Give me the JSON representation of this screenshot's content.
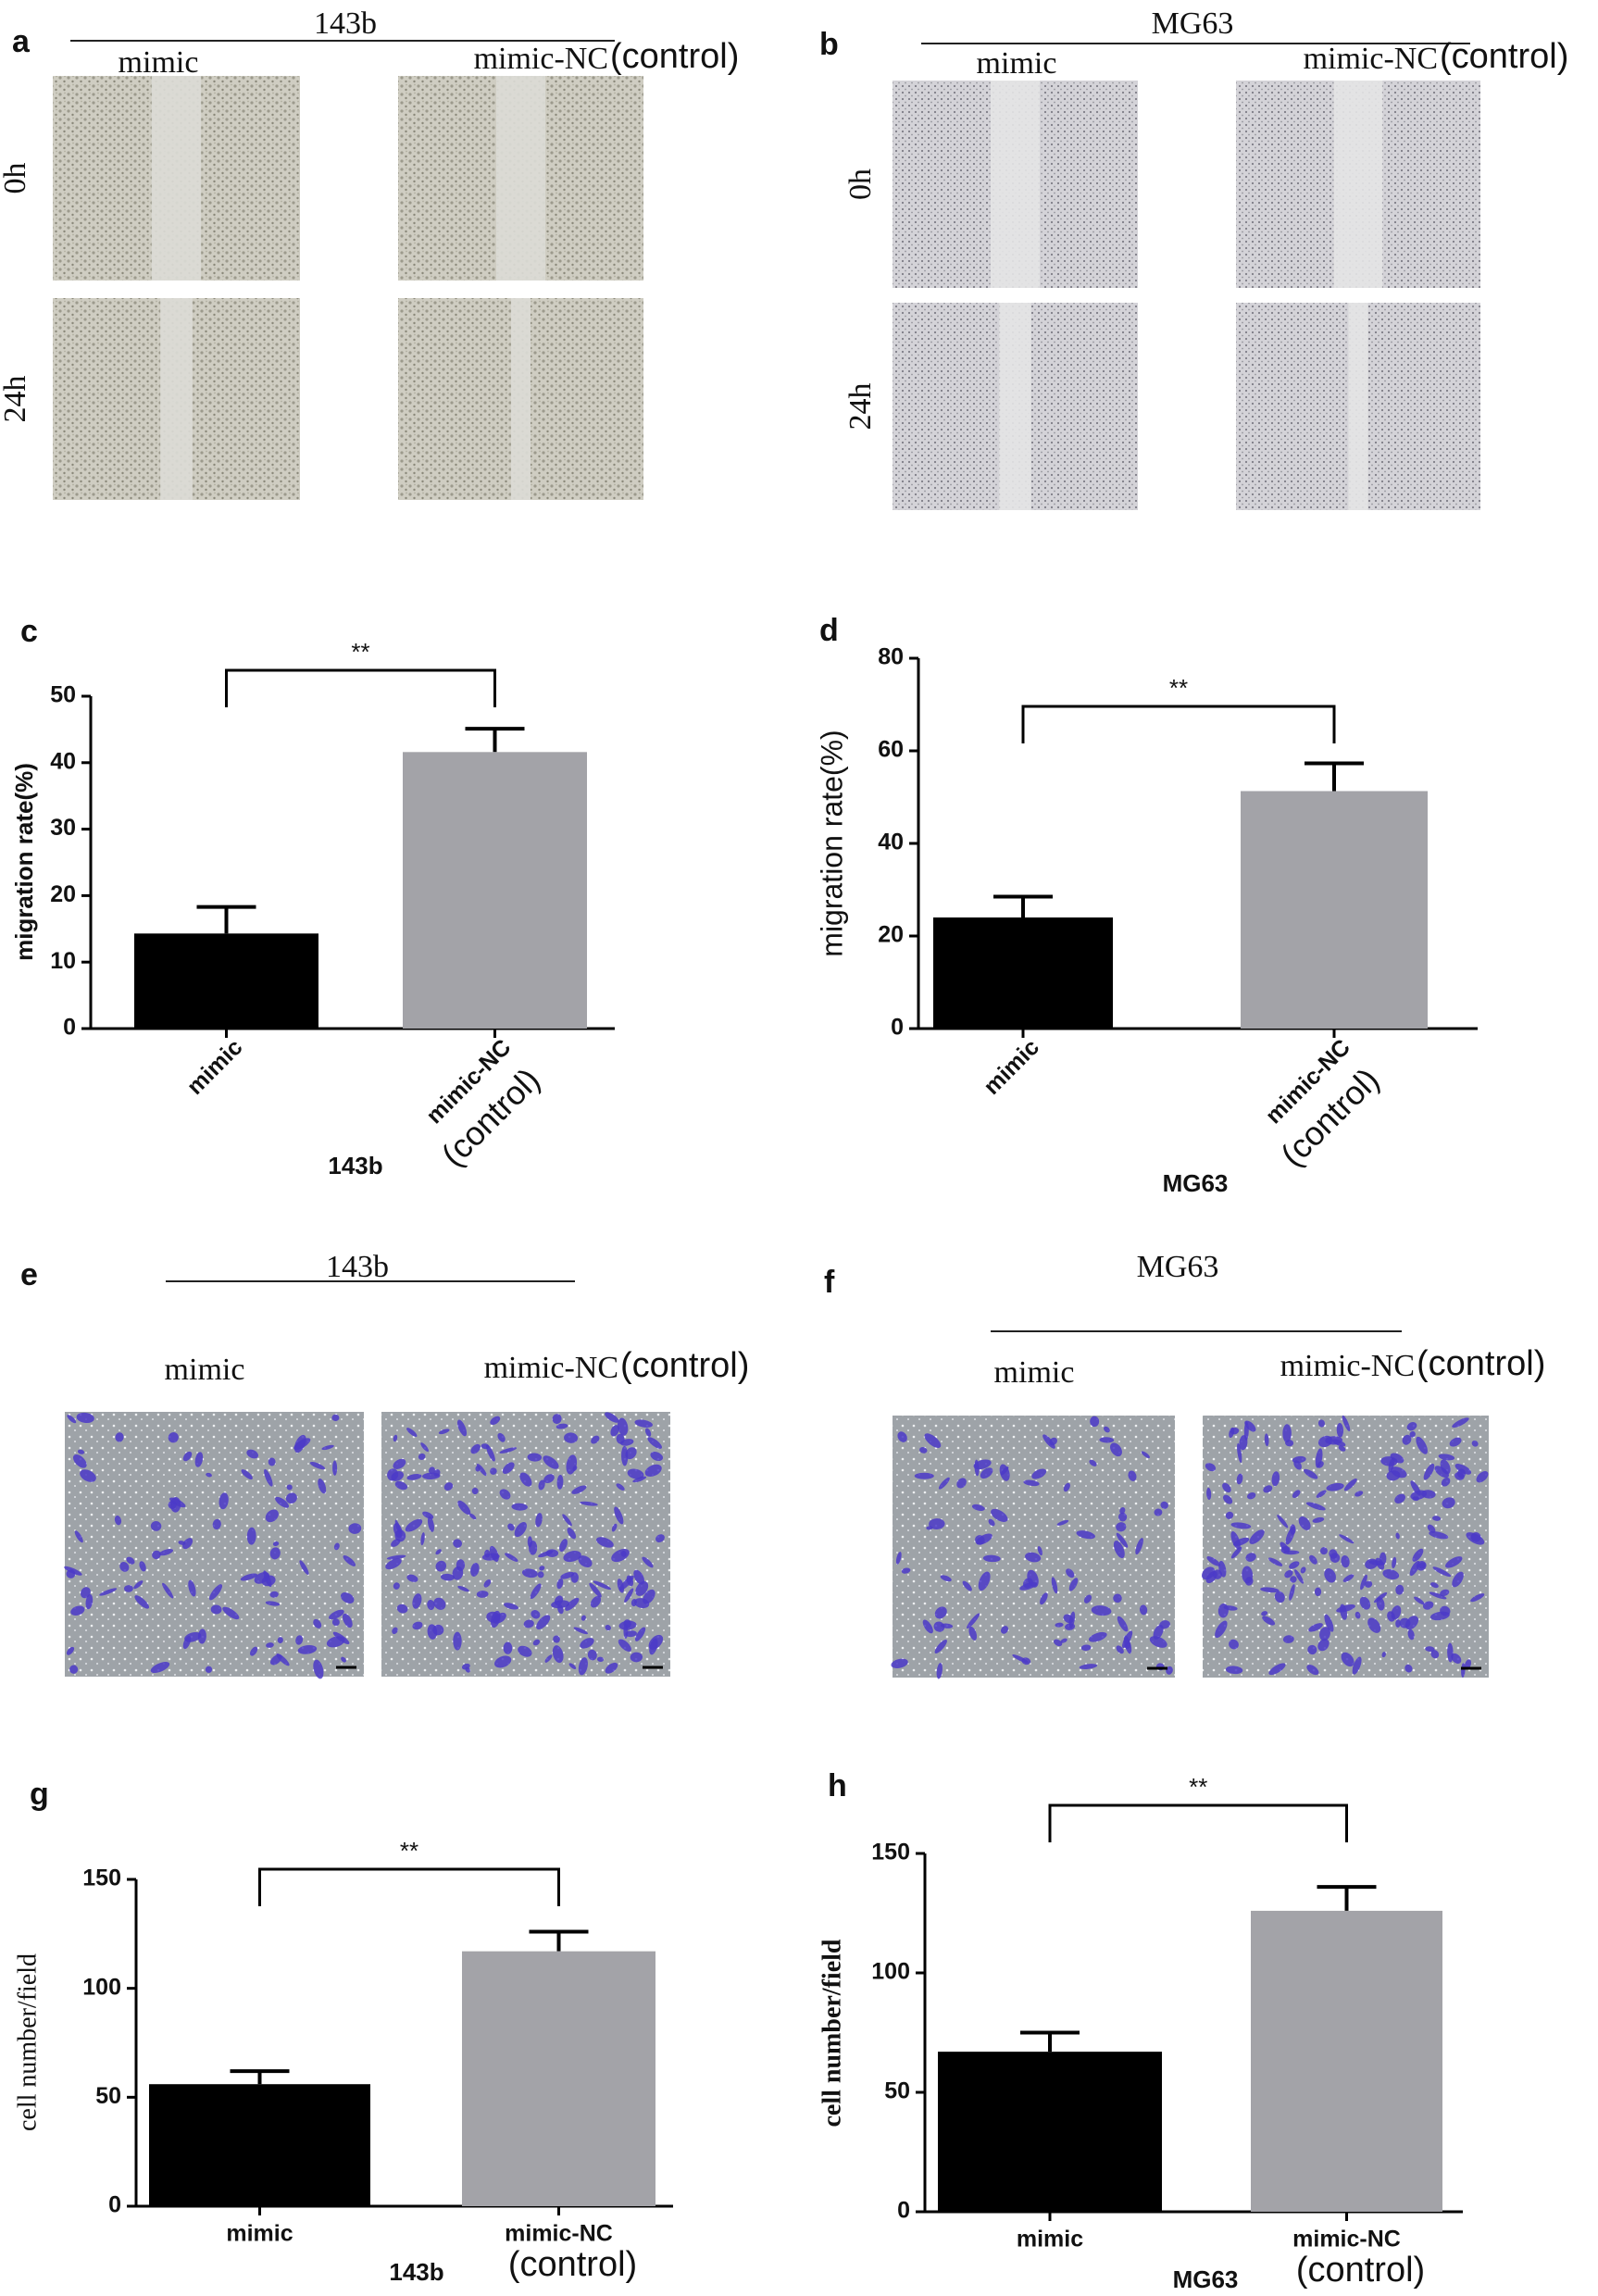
{
  "image_panels": [
    {
      "letter": "a",
      "title": "143b",
      "columns": [
        "mimic",
        "mimic-NC"
      ],
      "column_note": "(control)",
      "rows": [
        "0h",
        "24h"
      ]
    },
    {
      "letter": "b",
      "title": "MG63",
      "columns": [
        "mimic",
        "mimic-NC"
      ],
      "column_note": "(control)",
      "rows": [
        "0h",
        "24h"
      ]
    },
    {
      "letter": "e",
      "title": "143b",
      "columns": [
        "mimic",
        "mimic-NC"
      ],
      "column_note": "(control)"
    },
    {
      "letter": "f",
      "title": "MG63",
      "columns": [
        "mimic",
        "mimic-NC"
      ],
      "column_note": "(control)"
    }
  ],
  "chart_data": [
    {
      "type": "bar",
      "letter": "c",
      "categories": [
        "mimic",
        "mimic-NC"
      ],
      "annotation": "(control)",
      "values": [
        14.3,
        41.6
      ],
      "errors": [
        4,
        3.5
      ],
      "colors": [
        "#000000",
        "#a3a3a8"
      ],
      "significance": "**",
      "xlabel": "143b",
      "ylabel": "migration rate(%)",
      "ylim": [
        0,
        50
      ],
      "yticks": [
        0,
        10,
        20,
        30,
        40,
        50
      ],
      "xtick_rotation": 45
    },
    {
      "type": "bar",
      "letter": "d",
      "categories": [
        "mimic",
        "mimic-NC"
      ],
      "annotation": "(control)",
      "values": [
        24,
        51.3
      ],
      "errors": [
        4.5,
        6
      ],
      "colors": [
        "#000000",
        "#a3a3a8"
      ],
      "significance": "**",
      "xlabel": "MG63",
      "ylabel": "migration rate(%)",
      "ylim": [
        0,
        80
      ],
      "yticks": [
        0,
        20,
        40,
        60,
        80
      ],
      "xtick_rotation": 45
    },
    {
      "type": "bar",
      "letter": "g",
      "categories": [
        "mimic",
        "mimic-NC"
      ],
      "annotation": "(control)",
      "values": [
        56,
        117
      ],
      "errors": [
        6,
        9
      ],
      "colors": [
        "#000000",
        "#a3a3a8"
      ],
      "significance": "**",
      "xlabel": "143b",
      "ylabel": "cell number/field",
      "ylim": [
        0,
        150
      ],
      "yticks": [
        0,
        50,
        100,
        150
      ],
      "xtick_rotation": 0
    },
    {
      "type": "bar",
      "letter": "h",
      "categories": [
        "mimic",
        "mimic-NC"
      ],
      "annotation": "(control)",
      "values": [
        67,
        126
      ],
      "errors": [
        8,
        10
      ],
      "colors": [
        "#000000",
        "#a3a3a8"
      ],
      "significance": "**",
      "xlabel": "MG63",
      "ylabel": "cell number/field",
      "ylim": [
        0,
        150
      ],
      "yticks": [
        0,
        50,
        100,
        150
      ],
      "xtick_rotation": 0
    }
  ]
}
